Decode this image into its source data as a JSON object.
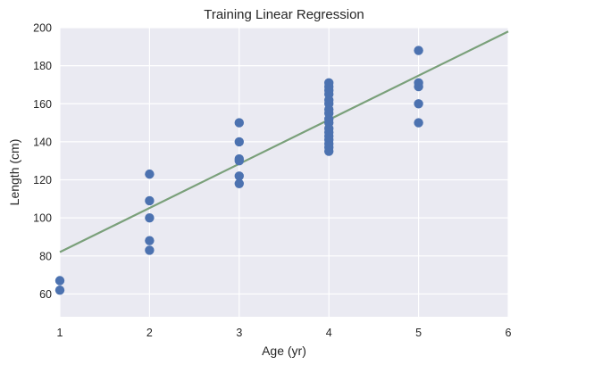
{
  "chart_data": {
    "type": "scatter",
    "title": "Training Linear Regression",
    "xlabel": "Age (yr)",
    "ylabel": "Length (cm)",
    "xlim": [
      1,
      6
    ],
    "ylim": [
      48,
      200
    ],
    "xticks": [
      1,
      2,
      3,
      4,
      5,
      6
    ],
    "yticks": [
      60,
      80,
      100,
      120,
      140,
      160,
      180,
      200
    ],
    "grid": true,
    "colors": {
      "background": "#eaeaf2",
      "grid": "#ffffff",
      "points": "#4c72b0",
      "line": "#7aa07a"
    },
    "series": [
      {
        "type": "scatter",
        "points": [
          [
            1,
            67
          ],
          [
            1,
            62
          ],
          [
            2,
            123
          ],
          [
            2,
            109
          ],
          [
            2,
            100
          ],
          [
            2,
            88
          ],
          [
            2,
            83
          ],
          [
            3,
            150
          ],
          [
            3,
            140
          ],
          [
            3,
            131
          ],
          [
            3,
            130
          ],
          [
            3,
            122
          ],
          [
            3,
            118
          ],
          [
            4,
            171
          ],
          [
            4,
            169
          ],
          [
            4,
            167
          ],
          [
            4,
            165
          ],
          [
            4,
            162
          ],
          [
            4,
            160
          ],
          [
            4,
            157
          ],
          [
            4,
            155
          ],
          [
            4,
            152
          ],
          [
            4,
            150
          ],
          [
            4,
            147
          ],
          [
            4,
            145
          ],
          [
            4,
            143
          ],
          [
            4,
            141
          ],
          [
            4,
            139
          ],
          [
            4,
            137
          ],
          [
            4,
            135
          ],
          [
            5,
            188
          ],
          [
            5,
            171
          ],
          [
            5,
            169
          ],
          [
            5,
            160
          ],
          [
            5,
            150
          ]
        ]
      },
      {
        "type": "line",
        "points": [
          [
            1,
            82
          ],
          [
            6,
            198
          ]
        ]
      }
    ]
  }
}
